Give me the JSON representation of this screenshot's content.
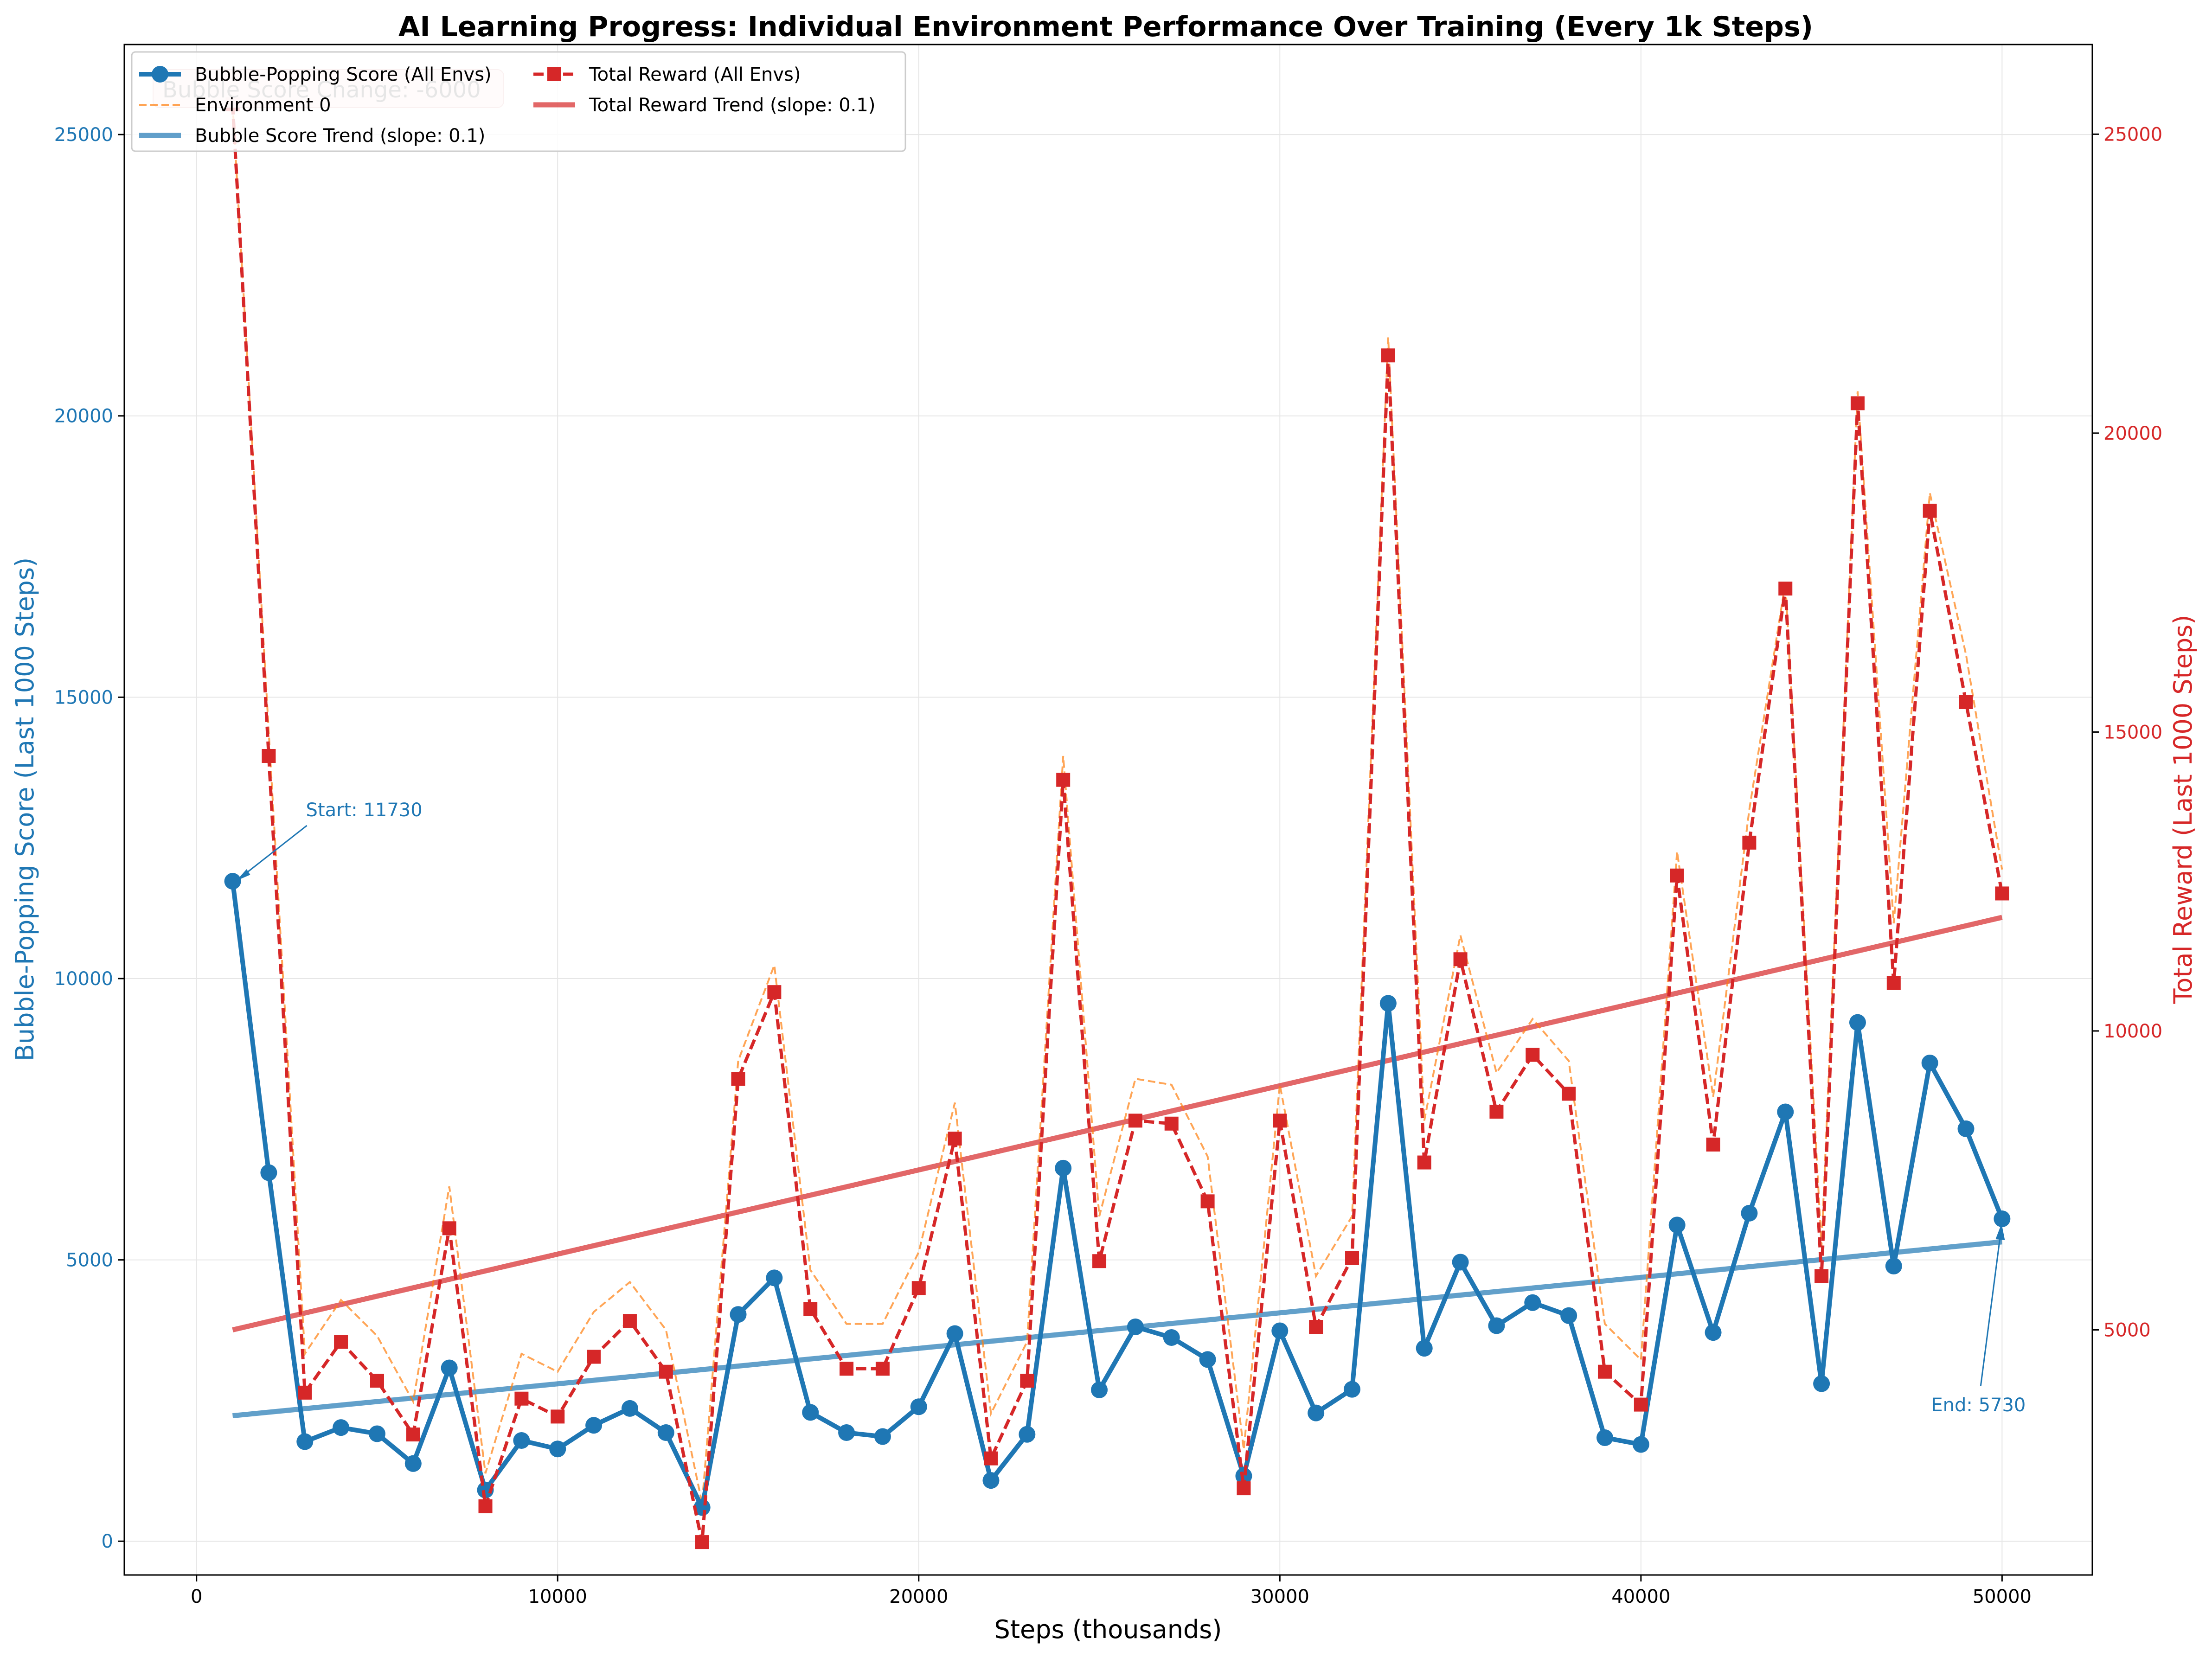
{
  "chart_data": {
    "type": "line",
    "title": "AI Learning Progress: Individual Environment Performance Over Training (Every 1k Steps)",
    "xlabel": "Steps (thousands)",
    "ylabel_left": "Bubble-Popping Score (Last 1000 Steps)",
    "ylabel_right": "Total Reward (Last 1000 Steps)",
    "xlim": [
      -2000,
      52500
    ],
    "ylim_left": [
      -600,
      26600
    ],
    "ylim_right": [
      900,
      26500
    ],
    "x_ticks": [
      0,
      10000,
      20000,
      30000,
      40000,
      50000
    ],
    "y_ticks_left": [
      0,
      5000,
      10000,
      15000,
      20000,
      25000
    ],
    "y_ticks_right": [
      5000,
      10000,
      15000,
      20000,
      25000
    ],
    "grid": true,
    "legend_position": "top-left",
    "x": [
      1000,
      2000,
      3000,
      4000,
      5000,
      6000,
      7000,
      8000,
      9000,
      10000,
      11000,
      12000,
      13000,
      14000,
      15000,
      16000,
      17000,
      18000,
      19000,
      20000,
      21000,
      22000,
      23000,
      24000,
      25000,
      26000,
      27000,
      28000,
      29000,
      30000,
      31000,
      32000,
      33000,
      34000,
      35000,
      36000,
      37000,
      38000,
      39000,
      40000,
      41000,
      42000,
      43000,
      44000,
      45000,
      46000,
      47000,
      48000,
      49000,
      50000
    ],
    "series": [
      {
        "name": "Bubble-Popping Score (All Envs)",
        "axis": "left",
        "color": "#1f77b4",
        "style": "solid-circle",
        "values": [
          11730,
          6550,
          1770,
          2020,
          1910,
          1380,
          3080,
          910,
          1790,
          1640,
          2060,
          2360,
          1930,
          600,
          4030,
          4680,
          2290,
          1930,
          1860,
          2390,
          3690,
          1080,
          1900,
          6630,
          2690,
          3810,
          3620,
          3230,
          1160,
          3740,
          2280,
          2700,
          9560,
          3430,
          4960,
          3830,
          4240,
          4010,
          1840,
          1720,
          5620,
          3710,
          5830,
          7630,
          2800,
          9220,
          4890,
          8500,
          7330,
          5730
        ]
      },
      {
        "name": "Environment 0",
        "axis": "right",
        "color": "#ff7f0e",
        "style": "dashed-thin",
        "values": [
          25500,
          15000,
          4600,
          5500,
          4900,
          3800,
          7400,
          2600,
          4600,
          4300,
          5300,
          5800,
          5000,
          2100,
          9500,
          11100,
          6000,
          5100,
          5100,
          6300,
          8800,
          3600,
          4800,
          14600,
          6900,
          9200,
          9100,
          7900,
          3000,
          9100,
          5900,
          6900,
          21600,
          8500,
          11600,
          9300,
          10200,
          9500,
          5100,
          4500,
          13000,
          8900,
          13700,
          17500,
          6400,
          20700,
          11800,
          19000,
          16300,
          12700
        ]
      },
      {
        "name": "Total Reward (All Envs)",
        "axis": "right",
        "color": "#d62728",
        "style": "dashed-square",
        "values": [
          25500,
          14600,
          3950,
          4800,
          4150,
          3250,
          6700,
          2050,
          3850,
          3550,
          4550,
          5150,
          4300,
          1450,
          9200,
          10650,
          5350,
          4350,
          4350,
          5700,
          8200,
          2850,
          4150,
          14200,
          6150,
          8500,
          8450,
          7150,
          2350,
          8500,
          5050,
          6200,
          21300,
          7800,
          11200,
          8650,
          9600,
          8950,
          4300,
          3750,
          12600,
          8100,
          13150,
          17400,
          5900,
          20500,
          10800,
          18700,
          15500,
          12300
        ]
      },
      {
        "name": "Bubble Score Trend (slope: 0.1)",
        "axis": "left",
        "color": "#1f77b4",
        "style": "trend",
        "x": [
          1000,
          50000
        ],
        "values": [
          2230,
          5320
        ]
      },
      {
        "name": "Total Reward Trend (slope: 0.1)",
        "axis": "right",
        "color": "#d62728",
        "style": "trend",
        "x": [
          1000,
          50000
        ],
        "values": [
          5000,
          11900
        ]
      }
    ],
    "annotations": [
      {
        "text": "Start: 11730",
        "x": 1000,
        "y": 11730
      },
      {
        "text": "End: 5730",
        "x": 50000,
        "y": 5730
      }
    ],
    "textbox": "Bubble Score Change: -6000"
  }
}
